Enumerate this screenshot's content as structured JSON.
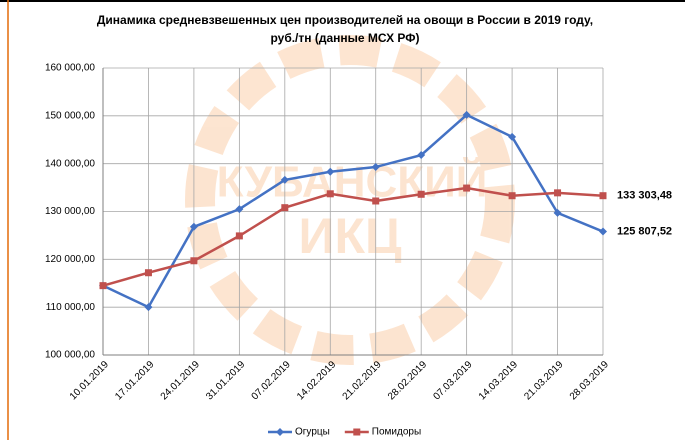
{
  "chart_data": {
    "type": "line",
    "title": [
      "Динамика средневзвешенных цен производителей на овощи в России в 2019 году,",
      "руб./тн (данные МСХ РФ)"
    ],
    "watermark": [
      "КУБАНСКИЙ",
      "ИКЦ"
    ],
    "categories": [
      "10.01.2019",
      "17.01.2019",
      "24.01.2019",
      "31.01.2019",
      "07.02.2019",
      "14.02.2019",
      "21.02.2019",
      "28.02.2019",
      "07.03.2019",
      "14.03.2019",
      "21.03.2019",
      "28.03.2019"
    ],
    "series": [
      {
        "name": "Огурцы",
        "color": "#4472c4",
        "marker": "diamond",
        "values": [
          114500,
          110000,
          126800,
          130500,
          136600,
          138300,
          139300,
          141800,
          150200,
          145600,
          129700,
          125807.52
        ],
        "value_labels": [
          null,
          null,
          null,
          null,
          null,
          null,
          null,
          null,
          null,
          null,
          null,
          "125 807,52"
        ]
      },
      {
        "name": "Помидоры",
        "color": "#c0504d",
        "marker": "square",
        "values": [
          114500,
          117200,
          119700,
          124900,
          130800,
          133700,
          132200,
          133600,
          134900,
          133300,
          133900,
          133303.48
        ],
        "value_labels": [
          null,
          null,
          null,
          null,
          null,
          null,
          null,
          null,
          null,
          null,
          null,
          "133 303,48"
        ]
      }
    ],
    "ylim": [
      100000,
      160000
    ],
    "yticks": [
      {
        "value": 100000,
        "label": "100 000,00"
      },
      {
        "value": 110000,
        "label": "110 000,00"
      },
      {
        "value": 120000,
        "label": "120 000,00"
      },
      {
        "value": 130000,
        "label": "130 000,00"
      },
      {
        "value": 140000,
        "label": "140 000,00"
      },
      {
        "value": 150000,
        "label": "150 000,00"
      },
      {
        "value": 160000,
        "label": "160 000,00"
      }
    ],
    "grid": true,
    "legend": "bottom"
  }
}
